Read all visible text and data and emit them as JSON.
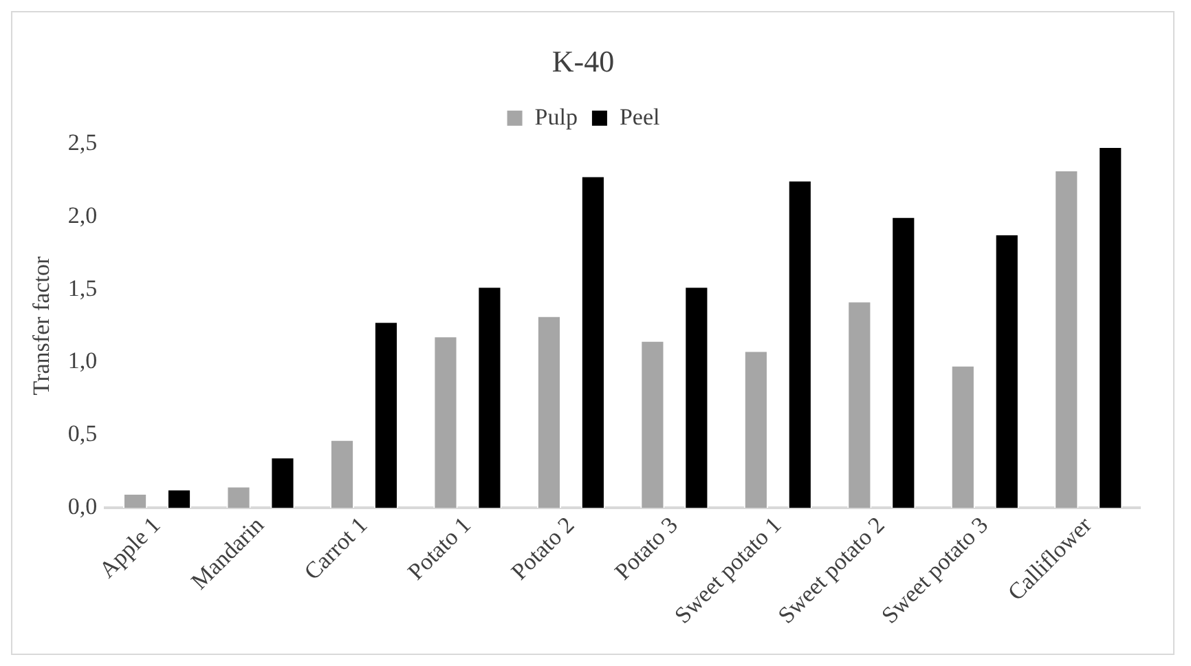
{
  "chart_data": {
    "type": "bar",
    "title": "K-40",
    "ylabel": "Transfer factor",
    "categories": [
      "Apple 1",
      "Mandarin",
      "Carrot 1",
      "Potato 1",
      "Potato 2",
      "Potato 3",
      "Sweet potato 1",
      "Sweet potato 2",
      "Sweet potato 3",
      "Calliflower"
    ],
    "series": [
      {
        "name": "Pulp",
        "color": "#a6a6a6",
        "values": [
          0.1,
          0.15,
          0.47,
          1.18,
          1.32,
          1.15,
          1.08,
          1.42,
          0.98,
          2.32
        ]
      },
      {
        "name": "Peel",
        "color": "#000000",
        "values": [
          0.13,
          0.35,
          1.28,
          1.52,
          2.28,
          1.52,
          2.25,
          2.0,
          1.88,
          2.48
        ]
      }
    ],
    "ylim": [
      0,
      2.5
    ],
    "yticks": [
      {
        "value": 0,
        "label": "0,0"
      },
      {
        "value": 0.5,
        "label": "0,5"
      },
      {
        "value": 1,
        "label": "1,0"
      },
      {
        "value": 1.5,
        "label": "1,5"
      },
      {
        "value": 2,
        "label": "2,0"
      },
      {
        "value": 2.5,
        "label": "2,5"
      }
    ],
    "grid": false,
    "legend": "top"
  }
}
